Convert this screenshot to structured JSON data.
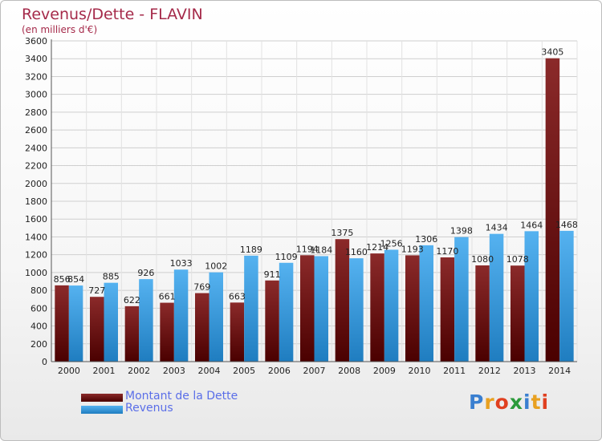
{
  "page": {
    "title": "Revenus/Dette - FLAVIN",
    "subtitle": "(en milliers d'€)"
  },
  "chart_data": {
    "type": "bar",
    "categories": [
      "2000",
      "2001",
      "2002",
      "2003",
      "2004",
      "2005",
      "2006",
      "2007",
      "2008",
      "2009",
      "2010",
      "2011",
      "2012",
      "2013",
      "2014"
    ],
    "series": [
      {
        "name": "Montant de la Dette",
        "color": "#7a1a1a",
        "values": [
          856,
          727,
          622,
          661,
          769,
          663,
          911,
          1194,
          1375,
          1214,
          1193,
          1170,
          1080,
          1078,
          3405
        ],
        "labels": [
          "856",
          "727",
          "622",
          "661",
          "769",
          "663",
          "911",
          "1194",
          "1375",
          "1214",
          "1193",
          "1170",
          "1080",
          "1078",
          "3405"
        ]
      },
      {
        "name": "Revenus",
        "color": "#3a9ee0",
        "values": [
          854,
          885,
          926,
          1033,
          1002,
          1189,
          1109,
          1184,
          1160,
          1256,
          1306,
          1398,
          1434,
          1464,
          1468
        ],
        "labels": [
          "854",
          "885",
          "926",
          "1033",
          "1002",
          "1189",
          "1109",
          "1184",
          "1160",
          "1256",
          "1306",
          "1398",
          "1434",
          "1464",
          "1468"
        ]
      }
    ],
    "yticks": [
      "0",
      "200",
      "400",
      "600",
      "800",
      "1000",
      "1200",
      "1400",
      "1600",
      "1800",
      "2000",
      "2200",
      "2400",
      "2600",
      "2800",
      "3000",
      "3200",
      "3400",
      "3600"
    ],
    "ylim": [
      0,
      3600
    ],
    "grid": true,
    "legend_position": "bottom-left"
  },
  "legend": {
    "debt_label": "Montant de la Dette",
    "revenue_label": "Revenus"
  },
  "logo": {
    "text": "Proxiti",
    "letters": [
      "P",
      "r",
      "o",
      "x",
      "i",
      "t",
      "i"
    ],
    "colors": [
      "#3a7fd0",
      "#e8a020",
      "#e04020",
      "#2b9a3a",
      "#3a7fd0",
      "#e8a020",
      "#e04020"
    ]
  }
}
